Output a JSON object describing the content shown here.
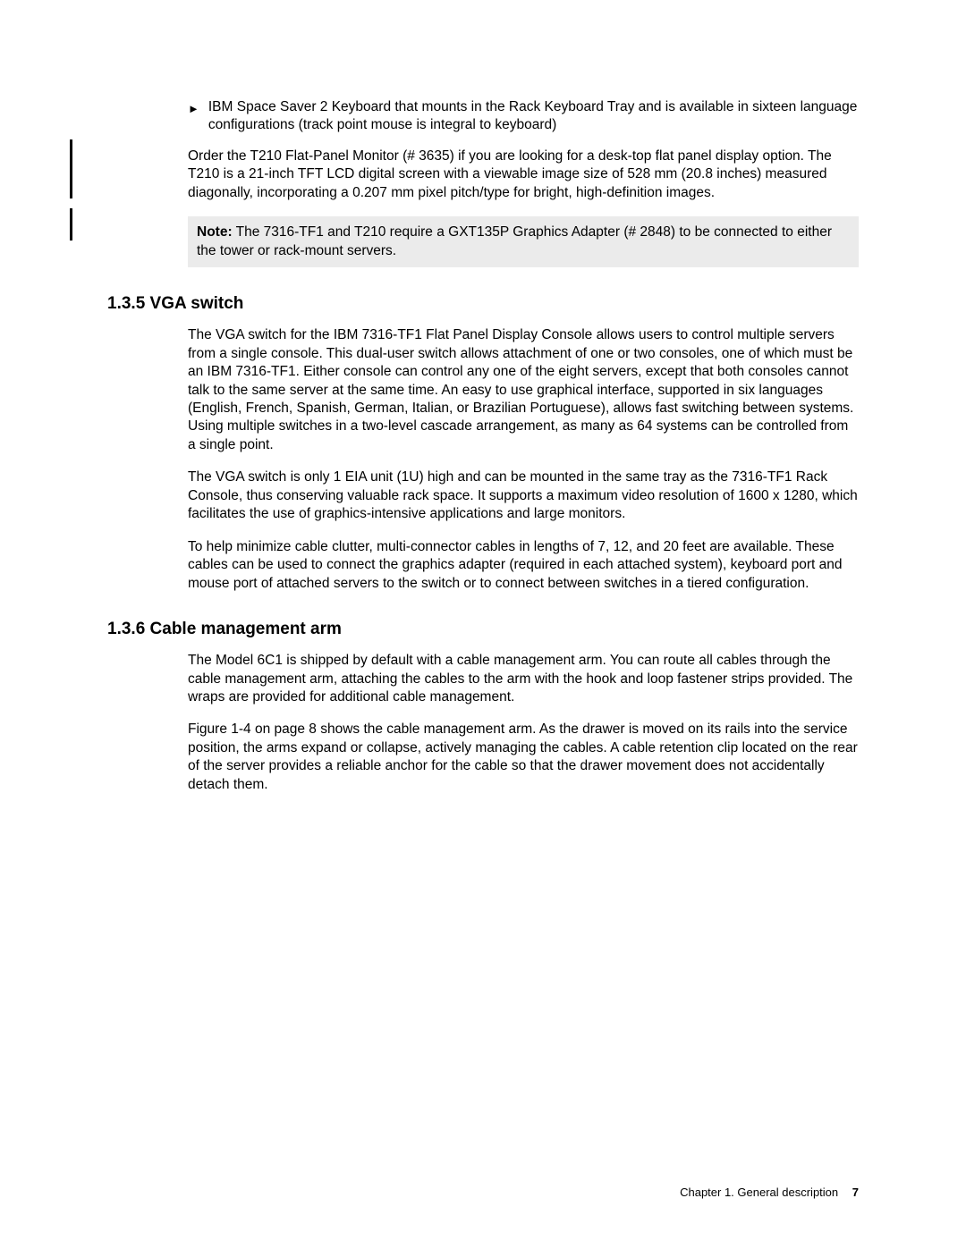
{
  "bullet": {
    "marker": "►",
    "text": "IBM Space Saver 2 Keyboard that mounts in the Rack Keyboard Tray and is available in sixteen language configurations (track point mouse is integral to keyboard)"
  },
  "para_order": "Order the T210 Flat-Panel Monitor (# 3635) if you are looking for a desk-top flat panel display option. The T210 is a 21-inch TFT LCD digital screen with a viewable image size of 528 mm (20.8 inches) measured diagonally, incorporating a 0.207 mm pixel pitch/type for bright, high-definition images.",
  "note": {
    "label": "Note:",
    "text": " The 7316-TF1 and T210 require a GXT135P Graphics Adapter (# 2848) to be connected to either the tower or rack-mount servers."
  },
  "sections": {
    "s135": {
      "heading": "1.3.5  VGA switch",
      "p1": "The VGA switch for the IBM 7316-TF1 Flat Panel Display Console allows users to control multiple servers from a single console. This dual-user switch allows attachment of one or two consoles, one of which must be an IBM 7316-TF1. Either console can control any one of the eight servers, except that both consoles cannot talk to the same server at the same time. An easy to use graphical interface, supported in six languages (English, French, Spanish, German, Italian, or Brazilian Portuguese), allows fast switching between systems. Using multiple switches in a two-level cascade arrangement, as many as 64 systems can be controlled from a single point.",
      "p2": "The VGA switch is only 1 EIA unit (1U) high and can be mounted in the same tray as the 7316-TF1 Rack Console, thus conserving valuable rack space. It supports a maximum video resolution of 1600 x 1280, which facilitates the use of graphics-intensive applications and large monitors.",
      "p3": "To help minimize cable clutter, multi-connector cables in lengths of 7, 12, and 20 feet are available. These cables can be used to connect the graphics adapter (required in each attached system), keyboard port and mouse port of attached servers to the switch or to connect between switches in a tiered configuration."
    },
    "s136": {
      "heading": "1.3.6  Cable management arm",
      "p1": "The Model 6C1 is shipped by default with a cable management arm. You can route all cables through the cable management arm, attaching the cables to the arm with the hook and loop fastener strips provided. The wraps are provided for additional cable management.",
      "p2": "Figure 1-4 on page 8 shows the cable management arm. As the drawer is moved on its rails into the service position, the arms expand or collapse, actively managing the cables. A cable retention clip located on the rear of the server provides a reliable anchor for the cable so that the drawer movement does not accidentally detach them."
    }
  },
  "footer": {
    "chapter": "Chapter 1. General description",
    "page": "7"
  }
}
